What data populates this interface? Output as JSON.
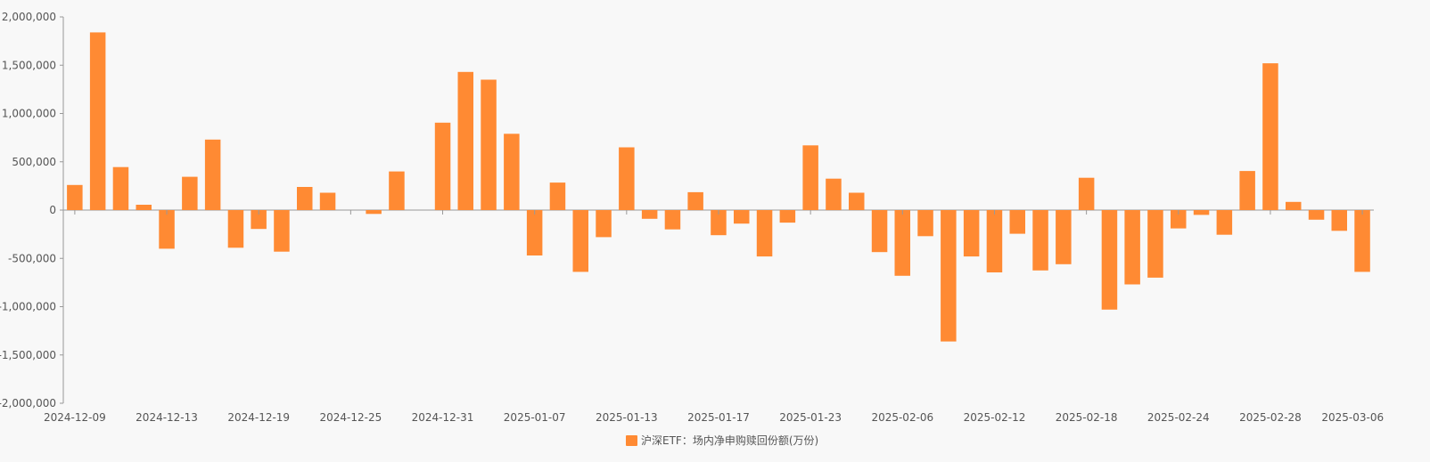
{
  "chart_data": {
    "type": "bar",
    "x_tick_labels": [
      "2024-12-09",
      "2024-12-13",
      "2024-12-19",
      "2024-12-25",
      "2024-12-31",
      "2025-01-07",
      "2025-01-13",
      "2025-01-17",
      "2025-01-23",
      "2025-02-06",
      "2025-02-12",
      "2025-02-18",
      "2025-02-24",
      "2025-02-28",
      "2025-03-06"
    ],
    "series": [
      {
        "name": "沪深ETF：场内净申购赎回份额(万份)",
        "color": "#ff8a33",
        "values": [
          260000,
          1840000,
          445000,
          55000,
          -400000,
          345000,
          730000,
          -390000,
          -195000,
          -430000,
          240000,
          180000,
          null,
          -40000,
          400000,
          null,
          905000,
          1430000,
          1350000,
          790000,
          -470000,
          285000,
          -640000,
          -280000,
          650000,
          -90000,
          -200000,
          185000,
          -260000,
          -140000,
          -480000,
          -130000,
          670000,
          325000,
          180000,
          -435000,
          -680000,
          -270000,
          -1360000,
          -480000,
          -645000,
          -245000,
          -625000,
          -560000,
          335000,
          -1030000,
          -770000,
          -700000,
          -190000,
          -50000,
          -255000,
          405000,
          1520000,
          85000,
          -100000,
          -215000,
          -640000
        ]
      }
    ],
    "y_ticks": [
      "2,000,000",
      "1,500,000",
      "1,000,000",
      "500,000",
      "0",
      "-500,000",
      "-1,000,000",
      "-1,500,000",
      "-2,000,000"
    ],
    "ylim": [
      -2000000,
      2000000
    ],
    "legend": {
      "position": "bottom-center",
      "label": "沪深ETF：场内净申购赎回份额(万份)"
    },
    "grid": false
  }
}
